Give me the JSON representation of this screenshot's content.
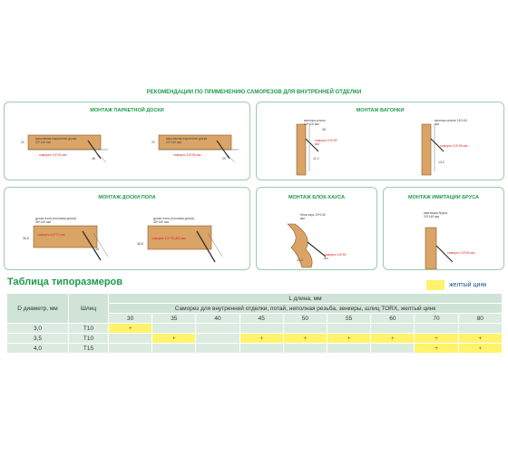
{
  "header": {
    "title": "РЕКОМЕНДАЦИИ ПО ПРИМЕНЕНИЮ САМОРЕЗОВ ДЛЯ ВНУТРЕННЕЙ ОТДЕЛКИ"
  },
  "panels": {
    "parquet": {
      "title": "МОНТАЖ ПАРКЕТНОЙ ДОСКИ",
      "left_board": "массивная паркетная доска 20*140 мм",
      "left_screw": "саморез 3,5*30 мм",
      "right_board": "массивная паркетная доска 20*140 мм",
      "right_screw": "саморез 3,5*35 мм",
      "dim_a": "22",
      "dim_b": "22",
      "angle": "45",
      "dim_c": "20"
    },
    "vagonka": {
      "title": "МОНТАЖ ВАГОНКИ",
      "left_label": "вагонка-штиль 14*110 мм",
      "left_screw": "саморез 3,5*30 мм",
      "right_label": "вагонка-штиль 16*140 мм",
      "right_screw": "саморез 3,5*35 мм",
      "dim_a": "11,2",
      "dim_b": "13,2",
      "angle": "45"
    },
    "floor": {
      "title": "МОНТАЖ ДОСКИ ПОЛА",
      "left_board": "доска пола (половая доска) 36*140 мм",
      "left_screw": "саморез 4,0*70 мм",
      "right_board": "доска пола (половая доска) 45*140 мм",
      "right_screw": "саморез 4,0*75 (80) мм",
      "dim_a": "36,8",
      "dim_b": "36,8",
      "angle": "45"
    },
    "blockhouse": {
      "title": "МОНТАЖ БЛОК-ХАУСА",
      "label": "блок-хаус 20*140 мм",
      "screw": "саморез 3,5*50 мм",
      "dim": "20,4"
    },
    "brus": {
      "title": "МОНТАЖ ИМИТАЦИИ БРУСА",
      "label": "имитация бруса 22*140 мм",
      "screw": "саморез 3,5*50 мм"
    }
  },
  "table": {
    "title": "Таблица типоразмеров",
    "legend_label": "желтый цинк",
    "col_diameter": "D диаметр, мм",
    "col_slot": "Шлиц",
    "col_length": "L длина, мм",
    "description": "Саморез для внутренней отделки, потай, неполная резьба, зенкеры, шлиц TORX, желтый цинк",
    "lengths": [
      "30",
      "35",
      "40",
      "45",
      "50",
      "55",
      "60",
      "70",
      "80"
    ],
    "rows": [
      {
        "d": "3,0",
        "slot": "T10",
        "cells": [
          "+",
          "",
          "",
          "",
          "",
          "",
          "",
          "",
          ""
        ]
      },
      {
        "d": "3,5",
        "slot": "T10",
        "cells": [
          "",
          "+",
          "",
          "+",
          "+",
          "+",
          "+",
          "+",
          "+"
        ]
      },
      {
        "d": "4,0",
        "slot": "T15",
        "cells": [
          "",
          "",
          "",
          "",
          "",
          "",
          "",
          "+",
          "+"
        ]
      }
    ]
  },
  "colors": {
    "accent": "#1e9a4a",
    "yellow_zinc": "#fff36b",
    "table_header": "#cfe3d6",
    "table_cell": "#dcebe0",
    "wood": "#d9a466"
  }
}
